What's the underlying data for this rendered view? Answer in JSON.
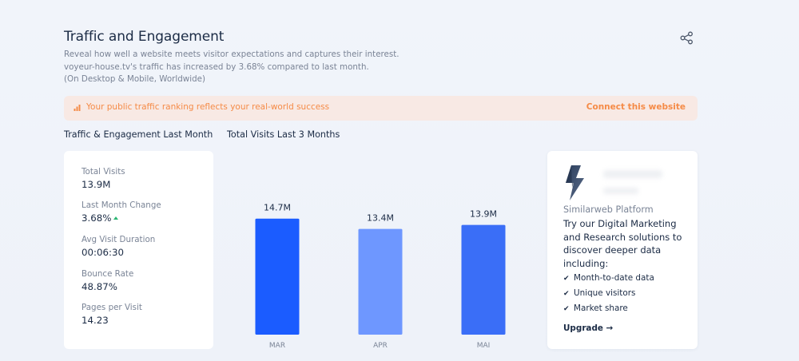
{
  "header": {
    "title": "Traffic and Engagement",
    "desc_line1": "Reveal how well a website meets visitor expectations and captures their interest.",
    "desc_line2": "voyeur-house.tv's traffic has increased by 3.68% compared to last month.",
    "desc_line3": "(On Desktop & Mobile, Worldwide)",
    "share_icon": "share-icon"
  },
  "banner": {
    "icon": "bar-chart-icon",
    "text": "Your public traffic ranking reflects your real-world success",
    "link": "Connect this website",
    "color": "#f58b47",
    "background": "#f8e9e4"
  },
  "sections": {
    "left_label": "Traffic & Engagement Last Month",
    "chart_label": "Total Visits Last 3 Months"
  },
  "metrics": [
    {
      "label": "Total Visits",
      "value": "13.9M"
    },
    {
      "label": "Last Month Change",
      "value": "3.68%",
      "trend": "up"
    },
    {
      "label": "Avg Visit Duration",
      "value": "00:06:30"
    },
    {
      "label": "Bounce Rate",
      "value": "48.87%"
    },
    {
      "label": "Pages per Visit",
      "value": "14.23"
    }
  ],
  "chart_data": {
    "type": "bar",
    "title": "Total Visits Last 3 Months",
    "categories": [
      "MAR",
      "APR",
      "MAI"
    ],
    "values": [
      14.7,
      13.4,
      13.9
    ],
    "value_labels": [
      "14.7M",
      "13.4M",
      "13.9M"
    ],
    "colors": [
      "#1b5cff",
      "#6e97ff",
      "#3a6ef7"
    ],
    "ylim": [
      0,
      17
    ],
    "grid": false
  },
  "promo": {
    "logo_icon": "similarweb-logo-icon",
    "brand": "Similarweb Platform",
    "text": "Try our Digital Marketing and Research solutions to discover deeper data including:",
    "items": [
      "Month-to-date data",
      "Unique visitors",
      "Market share"
    ],
    "upgrade": "Upgrade →"
  },
  "colors": {
    "accent": "#1b5cff",
    "text": "#1b2b45",
    "muted": "#7a8496",
    "trend_up": "#2bb673"
  }
}
